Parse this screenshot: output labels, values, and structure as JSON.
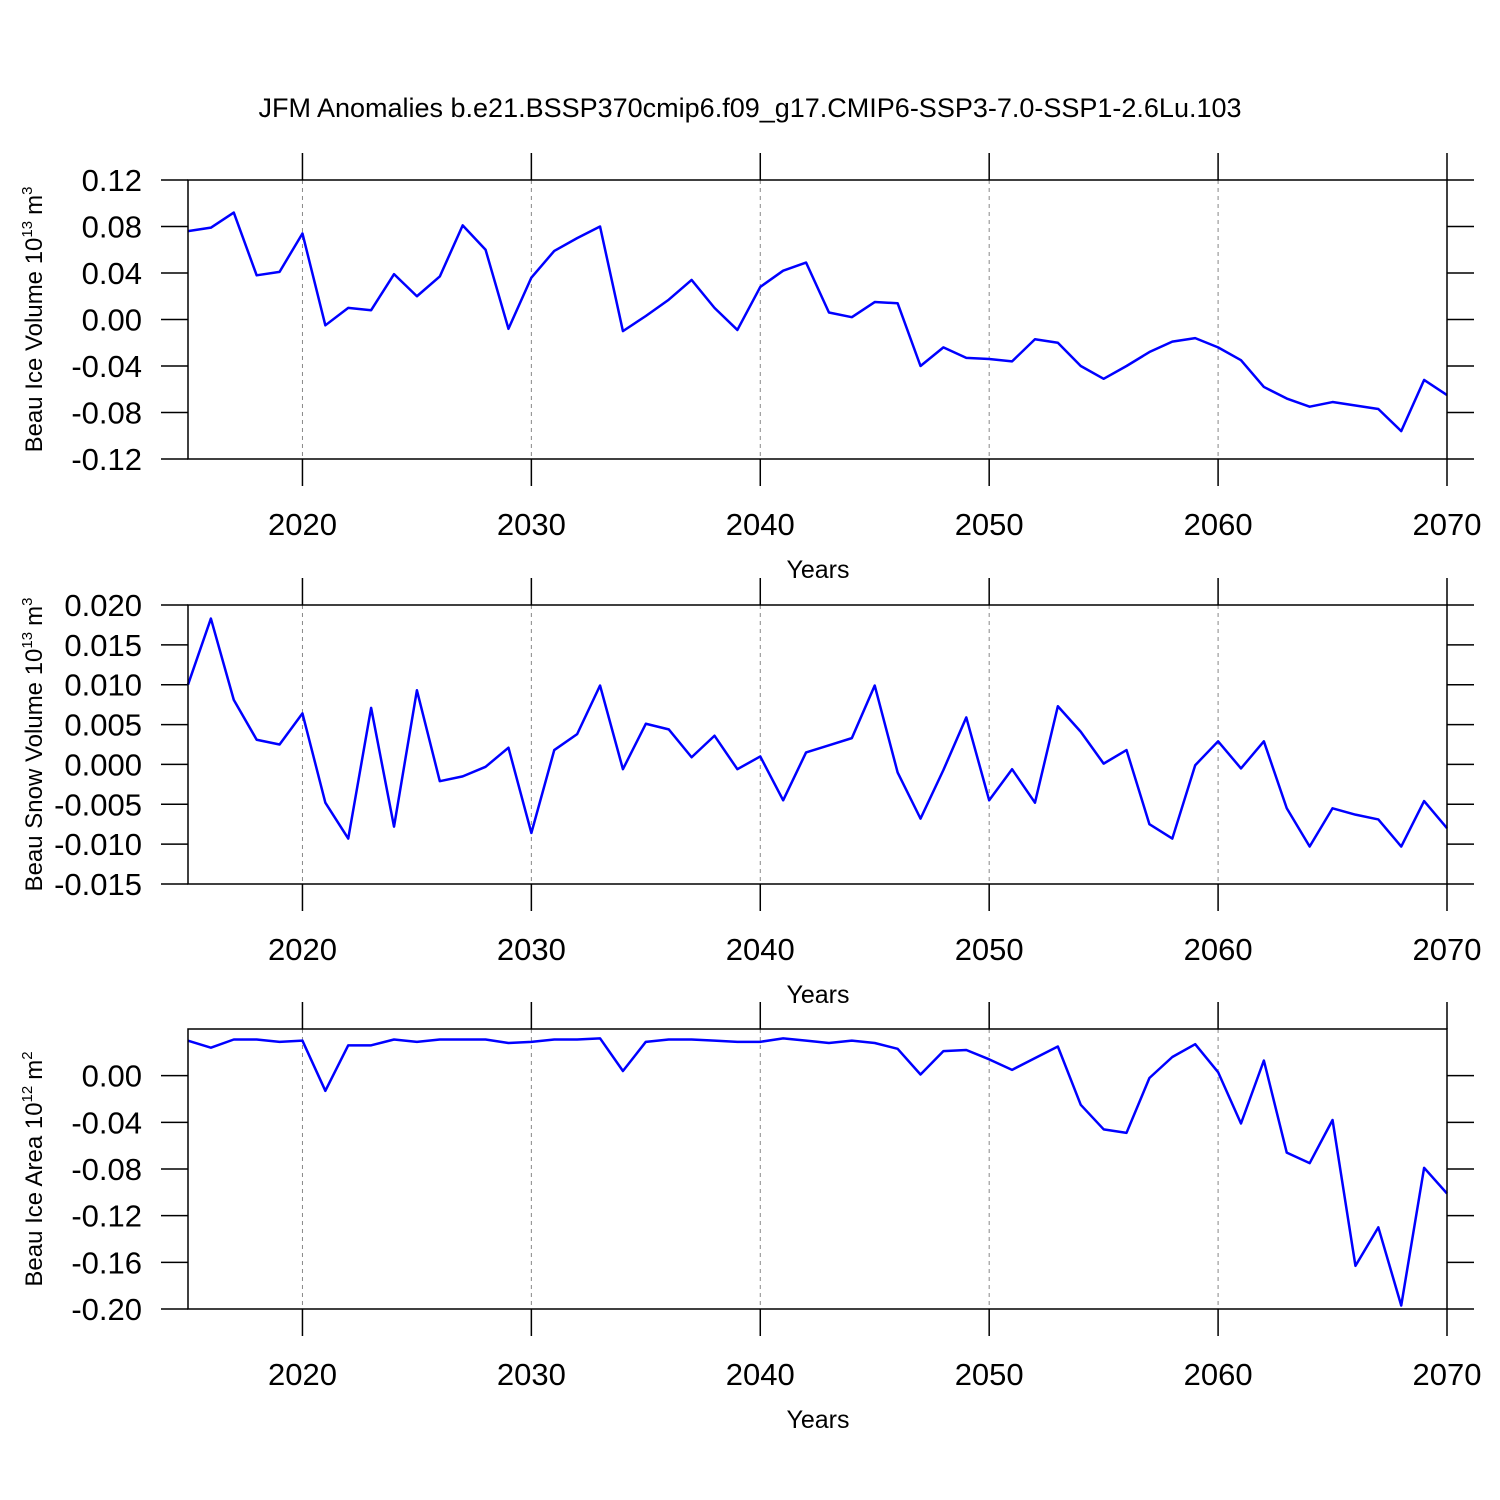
{
  "title": "JFM Anomalies b.e21.BSSP370cmip6.f09_g17.CMIP6-SSP3-7.0-SSP1-2.6Lu.103",
  "chart_data": [
    {
      "type": "line",
      "xlabel": "Years",
      "ylabel": [
        "Beau Ice Volume 10",
        "13",
        "m",
        "3"
      ],
      "xlim": [
        2015,
        2070
      ],
      "xticks": [
        2020,
        2030,
        2040,
        2050,
        2060,
        2070
      ],
      "grid": true,
      "ylim": [
        -0.12,
        0.12
      ],
      "yticks": [
        -0.12,
        -0.08,
        -0.04,
        {
          "value": 0,
          "label": "0.00"
        },
        0.04,
        0.08,
        0.12
      ],
      "x": [
        2015,
        2016,
        2017,
        2018,
        2019,
        2020,
        2021,
        2022,
        2023,
        2024,
        2025,
        2026,
        2027,
        2028,
        2029,
        2030,
        2031,
        2032,
        2033,
        2034,
        2035,
        2036,
        2037,
        2038,
        2039,
        2040,
        2041,
        2042,
        2043,
        2044,
        2045,
        2046,
        2047,
        2048,
        2049,
        2050,
        2051,
        2052,
        2053,
        2054,
        2055,
        2056,
        2057,
        2058,
        2059,
        2060,
        2061,
        2062,
        2063,
        2064,
        2065,
        2066,
        2067,
        2068,
        2069,
        2070
      ],
      "series": [
        {
          "color": "#0000ff",
          "values": [
            0.076,
            0.079,
            0.092,
            0.038,
            0.041,
            0.074,
            -0.005,
            0.01,
            0.008,
            0.039,
            0.02,
            0.037,
            0.081,
            0.06,
            -0.008,
            0.036,
            0.059,
            0.07,
            0.08,
            -0.01,
            0.003,
            0.017,
            0.034,
            0.01,
            -0.009,
            0.028,
            0.042,
            0.049,
            0.006,
            0.002,
            0.015,
            0.014,
            -0.04,
            -0.024,
            -0.033,
            -0.034,
            -0.036,
            -0.017,
            -0.02,
            -0.04,
            -0.051,
            -0.04,
            -0.028,
            -0.019,
            -0.016,
            -0.024,
            -0.035,
            -0.058,
            -0.068,
            -0.075,
            -0.071,
            -0.074,
            -0.077,
            -0.096,
            -0.052,
            -0.065
          ]
        }
      ]
    },
    {
      "type": "line",
      "xlabel": "Years",
      "ylabel": [
        "Beau Snow Volume 10",
        "13",
        "m",
        "3"
      ],
      "xlim": [
        2015,
        2070
      ],
      "xticks": [
        2020,
        2030,
        2040,
        2050,
        2060,
        2070
      ],
      "grid": true,
      "ylim": [
        -0.015,
        0.02
      ],
      "yticks": [
        -0.015,
        {
          "value": -0.01,
          "label": "-0.010"
        },
        -0.005,
        {
          "value": 0,
          "label": "0.000"
        },
        0.005,
        {
          "value": 0.01,
          "label": "0.010"
        },
        0.015,
        {
          "value": 0.02,
          "label": "0.020"
        }
      ],
      "x": [
        2015,
        2016,
        2017,
        2018,
        2019,
        2020,
        2021,
        2022,
        2023,
        2024,
        2025,
        2026,
        2027,
        2028,
        2029,
        2030,
        2031,
        2032,
        2033,
        2034,
        2035,
        2036,
        2037,
        2038,
        2039,
        2040,
        2041,
        2042,
        2043,
        2044,
        2045,
        2046,
        2047,
        2048,
        2049,
        2050,
        2051,
        2052,
        2053,
        2054,
        2055,
        2056,
        2057,
        2058,
        2059,
        2060,
        2061,
        2062,
        2063,
        2064,
        2065,
        2066,
        2067,
        2068,
        2069,
        2070
      ],
      "series": [
        {
          "color": "#0000ff",
          "values": [
            0.01,
            0.0183,
            0.0081,
            0.0031,
            0.0025,
            0.0064,
            -0.0048,
            -0.0093,
            0.0071,
            -0.0078,
            0.0093,
            -0.0021,
            -0.0015,
            -0.0003,
            0.0021,
            -0.0086,
            0.0018,
            0.0038,
            0.0099,
            -0.0006,
            0.0051,
            0.0044,
            0.0009,
            0.0036,
            -0.0006,
            0.001,
            -0.0045,
            0.0015,
            0.0024,
            0.0033,
            0.0099,
            -0.001,
            -0.0068,
            -0.0007,
            0.0059,
            -0.0045,
            -0.0006,
            -0.0048,
            0.0073,
            0.0041,
            0.0001,
            0.0018,
            -0.0075,
            -0.0093,
            -0.0001,
            0.0029,
            -0.0005,
            0.0029,
            -0.0055,
            -0.0103,
            -0.0055,
            -0.0063,
            -0.0069,
            -0.0103,
            -0.0046,
            -0.008
          ]
        }
      ]
    },
    {
      "type": "line",
      "xlabel": "Years",
      "ylabel": [
        "Beau Ice Area 10",
        "12",
        "m",
        "2"
      ],
      "xlim": [
        2015,
        2070
      ],
      "xticks": [
        2020,
        2030,
        2040,
        2050,
        2060,
        2070
      ],
      "grid": true,
      "ylim": [
        -0.2,
        0.04
      ],
      "yticks": [
        {
          "value": -0.2,
          "label": "-0.20"
        },
        -0.16,
        -0.12,
        -0.08,
        -0.04,
        {
          "value": 0,
          "label": "0.00"
        }
      ],
      "x": [
        2015,
        2016,
        2017,
        2018,
        2019,
        2020,
        2021,
        2022,
        2023,
        2024,
        2025,
        2026,
        2027,
        2028,
        2029,
        2030,
        2031,
        2032,
        2033,
        2034,
        2035,
        2036,
        2037,
        2038,
        2039,
        2040,
        2041,
        2042,
        2043,
        2044,
        2045,
        2046,
        2047,
        2048,
        2049,
        2050,
        2051,
        2052,
        2053,
        2054,
        2055,
        2056,
        2057,
        2058,
        2059,
        2060,
        2061,
        2062,
        2063,
        2064,
        2065,
        2066,
        2067,
        2068,
        2069,
        2070
      ],
      "series": [
        {
          "color": "#0000ff",
          "values": [
            0.03,
            0.024,
            0.031,
            0.031,
            0.029,
            0.03,
            -0.013,
            0.026,
            0.026,
            0.031,
            0.029,
            0.031,
            0.031,
            0.031,
            0.028,
            0.029,
            0.031,
            0.031,
            0.032,
            0.004,
            0.029,
            0.031,
            0.031,
            0.03,
            0.029,
            0.029,
            0.032,
            0.03,
            0.028,
            0.03,
            0.028,
            0.023,
            0.001,
            0.021,
            0.022,
            0.014,
            0.005,
            0.015,
            0.025,
            -0.025,
            -0.046,
            -0.049,
            -0.002,
            0.016,
            0.027,
            0.003,
            -0.041,
            0.013,
            -0.066,
            -0.075,
            -0.038,
            -0.163,
            -0.13,
            -0.197,
            -0.079,
            -0.101
          ]
        }
      ]
    }
  ]
}
